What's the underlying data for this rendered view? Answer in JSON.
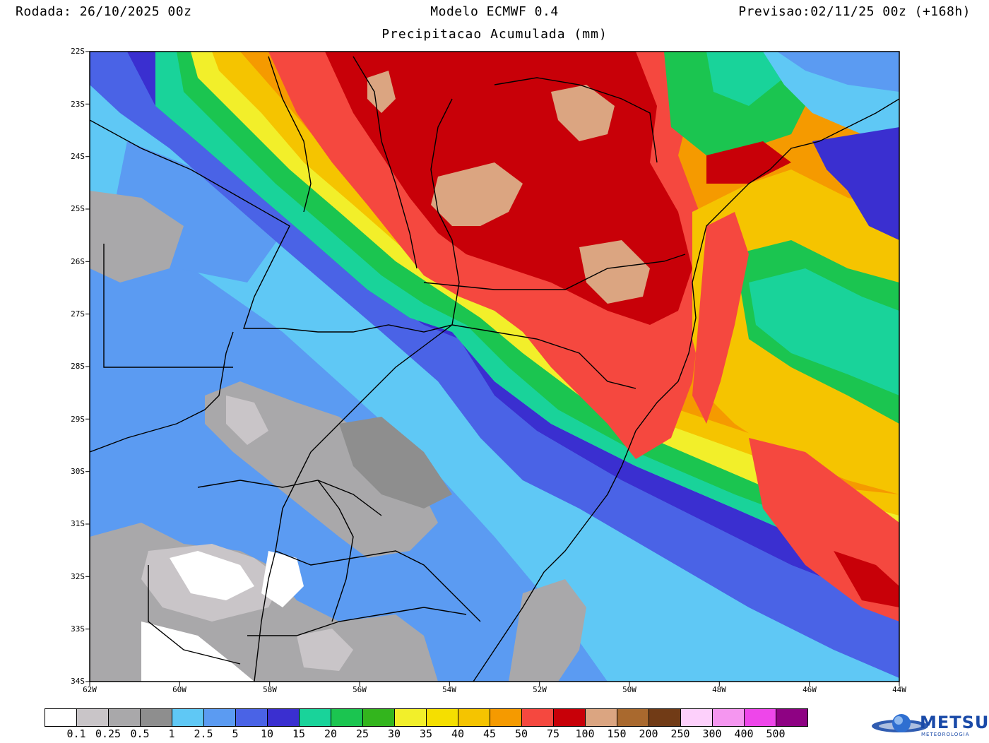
{
  "header": {
    "run": "Rodada: 26/10/2025 00z",
    "model": "Modelo ECMWF 0.4",
    "valid": "Previsao:02/11/25 00z (+168h)",
    "subtitle": "Precipitacao Acumulada (mm)"
  },
  "axes": {
    "lat_labels": [
      "22S",
      "23S",
      "24S",
      "25S",
      "26S",
      "27S",
      "28S",
      "29S",
      "30S",
      "31S",
      "32S",
      "33S",
      "34S"
    ],
    "lon_labels": [
      "62W",
      "60W",
      "58W",
      "56W",
      "54W",
      "52W",
      "50W",
      "48W",
      "46W",
      "44W"
    ]
  },
  "colorbar": {
    "colors": [
      "#ffffff",
      "#c9c5c8",
      "#a9a8aa",
      "#8e8e8e",
      "#5fc8f5",
      "#5b9bf2",
      "#4a63e6",
      "#3a2fd0",
      "#19d39a",
      "#1bc550",
      "#33b51d",
      "#f2ef2a",
      "#f5df00",
      "#f5c400",
      "#f59a00",
      "#f5483f",
      "#c80008",
      "#dba581",
      "#a9692e",
      "#713b16",
      "#fdd0fb",
      "#f596f0",
      "#ee46ea",
      "#8e0283"
    ],
    "labels": [
      "0.1",
      "0.25",
      "0.5",
      "1",
      "2.5",
      "5",
      "10",
      "15",
      "20",
      "25",
      "30",
      "35",
      "40",
      "45",
      "50",
      "75",
      "100",
      "150",
      "200",
      "250",
      "300",
      "400",
      "500"
    ]
  },
  "logo": {
    "name": "METSUL",
    "tagline": "METEOROLOGIA"
  }
}
